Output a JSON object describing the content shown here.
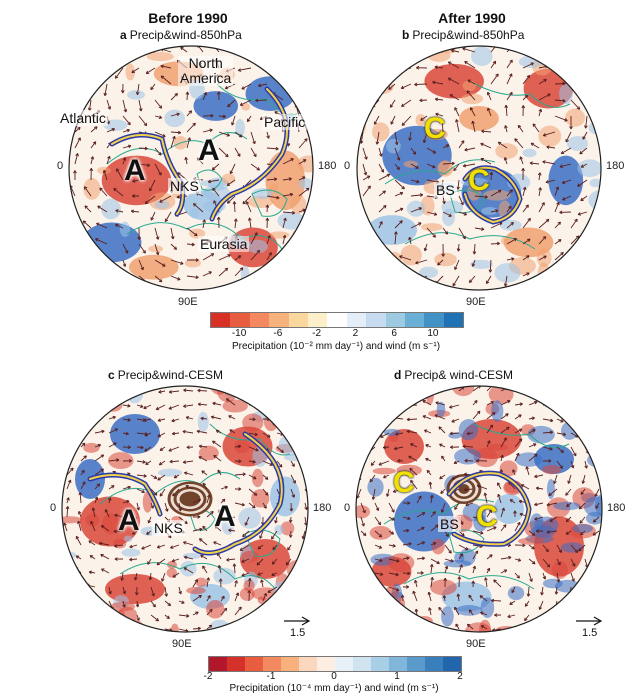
{
  "headers": {
    "before": "Before 1990",
    "after": "After 1990"
  },
  "panels": {
    "a": {
      "letter": "a",
      "title": "Precip&wind-850hPa"
    },
    "b": {
      "letter": "b",
      "title": "Precip&wind-850hPa"
    },
    "c": {
      "letter": "c",
      "title": "Precip&wind-CESM"
    },
    "d": {
      "letter": "d",
      "title": "Precip& wind-CESM"
    }
  },
  "map_labels": {
    "lon0": "0",
    "lon180": "180",
    "lon90e": "90E"
  },
  "annotations": {
    "north_america": "North\nAmerica",
    "atlantic": "Atlantic",
    "pacific": "Pacific",
    "eurasia": "Eurasia",
    "anticyclone": "A",
    "cyclone": "C",
    "nks": "NKS",
    "bs": "BS"
  },
  "colorbar_top": {
    "ticks": [
      "-10",
      "-6",
      "-2",
      "2",
      "6",
      "10"
    ],
    "label": "Precipitation (10⁻² mm day⁻¹) and wind (m s⁻¹)",
    "colors": [
      "#d73027",
      "#e85c3f",
      "#f4895f",
      "#f7b17d",
      "#fbd7a0",
      "#fdf0c8",
      "#ffffff",
      "#e3eef8",
      "#c6dbef",
      "#9ecae1",
      "#6baed6",
      "#4292c6",
      "#2171b5"
    ]
  },
  "colorbar_bottom": {
    "ticks": [
      "-2",
      "-1",
      "0",
      "1",
      "2"
    ],
    "label": "Precipitation (10⁻⁴ mm day⁻¹) and wind (m s⁻¹)",
    "colors": [
      "#b2182b",
      "#d6302a",
      "#e85c3f",
      "#f4895f",
      "#f7b17d",
      "#fbd7bf",
      "#fdeee4",
      "#e8f1f8",
      "#cfe3f1",
      "#a8cfe6",
      "#7fb6d9",
      "#5a9bcb",
      "#3a7fbd",
      "#2166ac"
    ]
  },
  "reference_vector": {
    "value": "1.5"
  },
  "colors": {
    "red": "#d9473a",
    "orange": "#f0a070",
    "blue": "#3b6fc4",
    "lightblue": "#9cc3e6",
    "coast": "#2aa88f",
    "arrow": "#5a1f1f",
    "trough_outer": "#2c3aa6",
    "trough_inner": "#f2d24b",
    "cyclone_text": "#f1e000",
    "brown": "#6b3a22"
  }
}
